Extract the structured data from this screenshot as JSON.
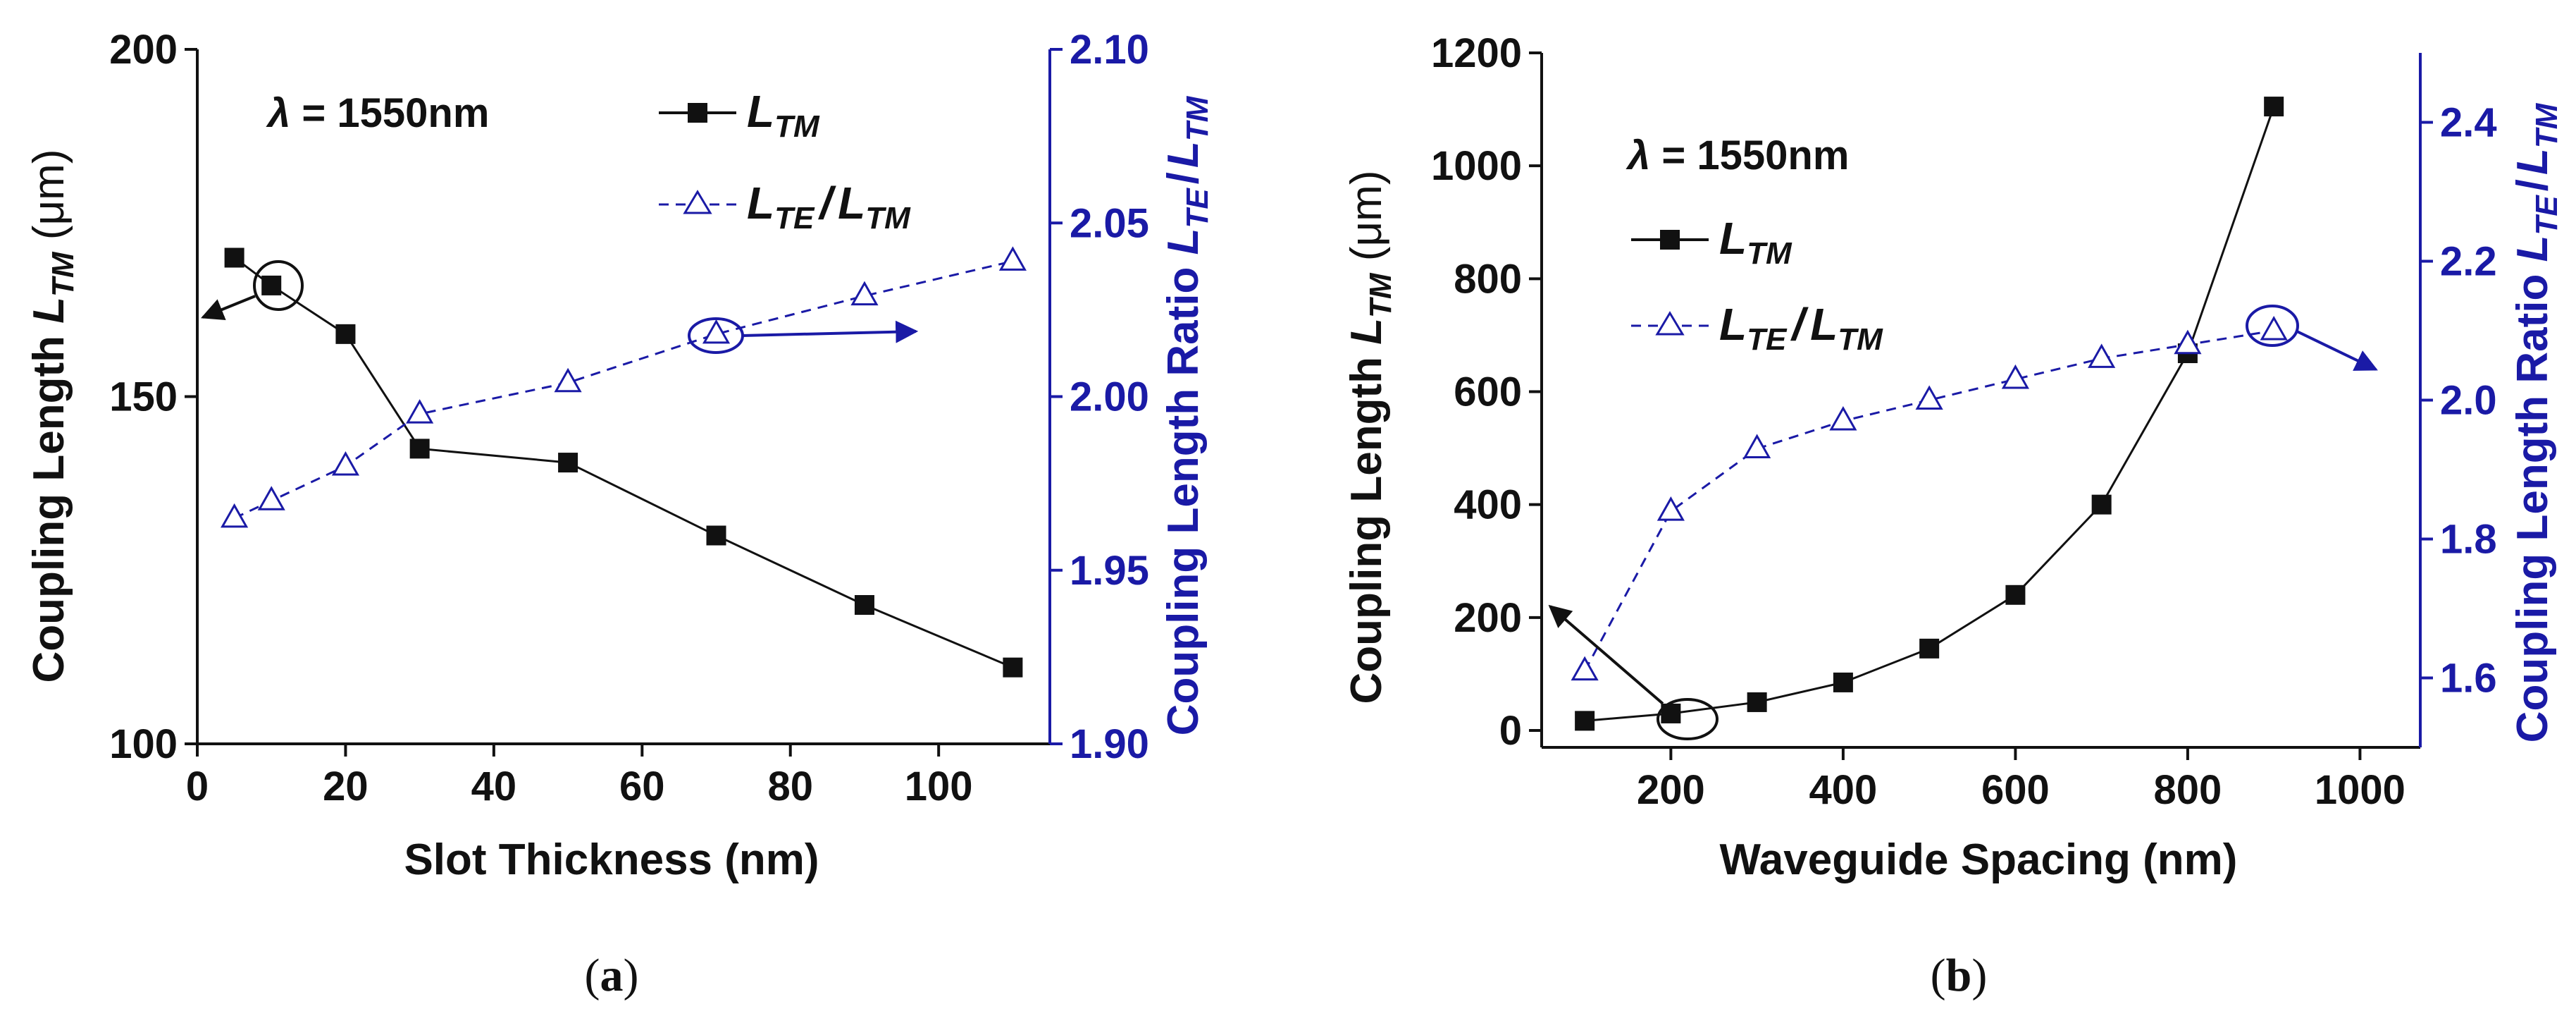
{
  "colors": {
    "left_series": "#111111",
    "right_series": "#1a1aa6"
  },
  "chart_data": [
    {
      "type": "line",
      "panel_caption_open": "(",
      "panel_caption_letter": "a",
      "panel_caption_close": ")",
      "annotation_symbol": "λ",
      "annotation_rest": " = 1550nm",
      "xlabel": "Slot Thickness (nm)",
      "ylabel_left_main": "Coupling Length ",
      "ylabel_left_var": "L",
      "ylabel_left_sub": "TM",
      "ylabel_left_unit": " (μm)",
      "ylabel_right_main": "Coupling Length Ratio ",
      "ylabel_right_var1": "L",
      "ylabel_right_sub1": "TE",
      "ylabel_right_slash": "/",
      "ylabel_right_var2": "L",
      "ylabel_right_sub2": "TM",
      "xlim": [
        0,
        115
      ],
      "x_ticks": [
        "0",
        "20",
        "40",
        "60",
        "80",
        "100"
      ],
      "ylim_left": [
        100,
        200
      ],
      "y_ticks_left": [
        "100",
        "150",
        "200"
      ],
      "ylim_right": [
        1.9,
        2.1
      ],
      "y_ticks_right": [
        "1.90",
        "1.95",
        "2.00",
        "2.05",
        "2.10"
      ],
      "legend_placement": "top-right",
      "series": [
        {
          "name_var": "L",
          "name_sub": "TM",
          "axis": "left",
          "marker": "filled-square",
          "line": "solid",
          "x": [
            5,
            10,
            20,
            30,
            50,
            70,
            90,
            110
          ],
          "y": [
            170,
            166,
            159,
            142.5,
            140.5,
            130,
            120,
            111
          ]
        },
        {
          "name_var1": "L",
          "name_sub1": "TE",
          "name_slash": "/",
          "name_var2": "L",
          "name_sub2": "TM",
          "axis": "right",
          "marker": "open-triangle",
          "line": "dashed",
          "x": [
            5,
            10,
            20,
            30,
            50,
            70,
            90,
            110
          ],
          "y": [
            1.965,
            1.97,
            1.98,
            1.995,
            2.004,
            2.018,
            2.029,
            2.039
          ]
        }
      ]
    },
    {
      "type": "line",
      "panel_caption_open": "(",
      "panel_caption_letter": "b",
      "panel_caption_close": ")",
      "annotation_symbol": "λ",
      "annotation_rest": " = 1550nm",
      "xlabel": "Waveguide Spacing (nm)",
      "ylabel_left_main": "Coupling Length ",
      "ylabel_left_var": "L",
      "ylabel_left_sub": "TM",
      "ylabel_left_unit": " (μm)",
      "ylabel_right_main": "Coupling Length Ratio ",
      "ylabel_right_var1": "L",
      "ylabel_right_sub1": "TE",
      "ylabel_right_slash": "/",
      "ylabel_right_var2": "L",
      "ylabel_right_sub2": "TM",
      "xlim": [
        50,
        1070
      ],
      "x_ticks": [
        "200",
        "400",
        "600",
        "800",
        "1000"
      ],
      "ylim_left": [
        -30,
        1200
      ],
      "y_ticks_left": [
        "0",
        "200",
        "400",
        "600",
        "800",
        "1000",
        "1200"
      ],
      "ylim_right": [
        1.5,
        2.5
      ],
      "y_ticks_right": [
        "1.6",
        "1.8",
        "2.0",
        "2.2",
        "2.4"
      ],
      "legend_placement": "top-left",
      "series": [
        {
          "name_var": "L",
          "name_sub": "TM",
          "axis": "left",
          "marker": "filled-square",
          "line": "solid",
          "x": [
            100,
            200,
            300,
            400,
            500,
            600,
            700,
            800,
            900
          ],
          "y": [
            17,
            30,
            50,
            85,
            145,
            240,
            400,
            668,
            1105
          ]
        },
        {
          "name_var1": "L",
          "name_sub1": "TE",
          "name_slash": "/",
          "name_var2": "L",
          "name_sub2": "TM",
          "axis": "right",
          "marker": "open-triangle",
          "line": "dashed",
          "x": [
            100,
            200,
            300,
            400,
            500,
            600,
            700,
            800,
            900
          ],
          "y": [
            1.61,
            1.84,
            1.93,
            1.97,
            2.0,
            2.03,
            2.06,
            2.08,
            2.1
          ]
        }
      ]
    }
  ]
}
